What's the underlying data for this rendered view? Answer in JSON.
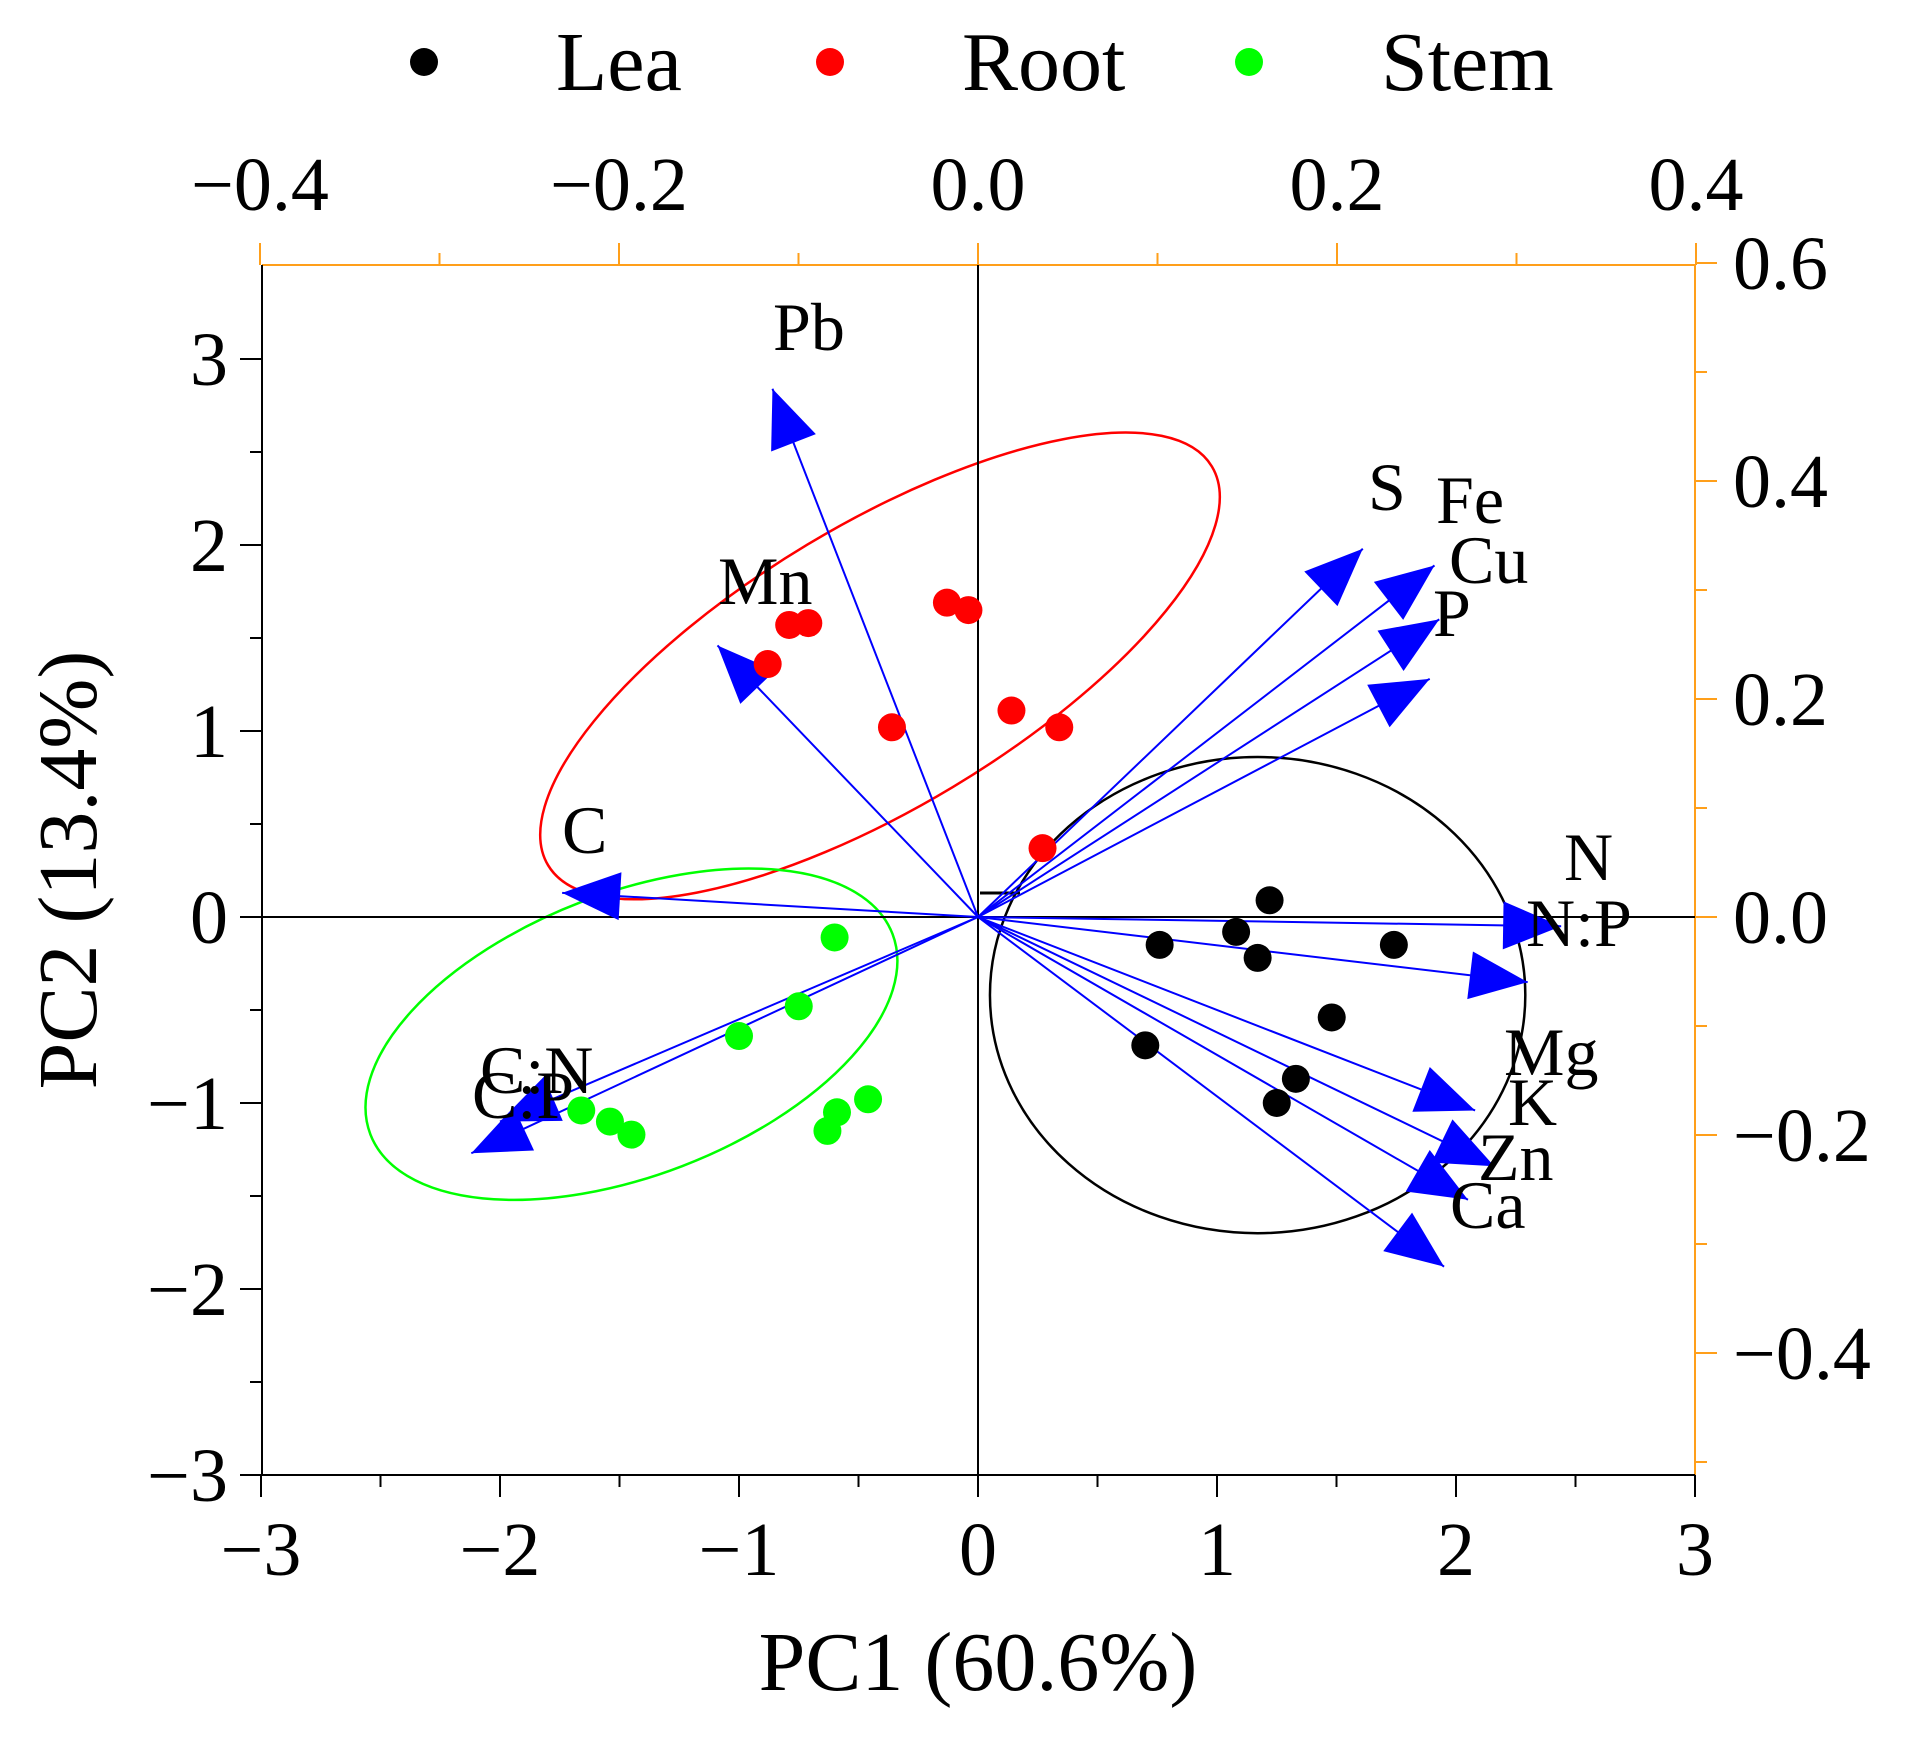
{
  "chart_data": {
    "type": "scatter",
    "subtype": "pca-biplot",
    "xlabel": "PC1 (60.6%)",
    "ylabel": "PC2 (13.4%)",
    "xlim": [
      -3,
      3
    ],
    "ylim": [
      -3,
      3.5
    ],
    "x_ticks": [
      "−3",
      "−2",
      "−1",
      "0",
      "1",
      "2",
      "3"
    ],
    "x_tick_values": [
      -3,
      -2,
      -1,
      0,
      1,
      2,
      3
    ],
    "y_ticks": [
      "−3",
      "−2",
      "−1",
      "0",
      "1",
      "2",
      "3"
    ],
    "y_tick_values": [
      -3,
      -2,
      -1,
      0,
      1,
      2,
      3
    ],
    "top_axis": {
      "range": [
        -0.4,
        0.4
      ],
      "ticks": [
        "−0.4",
        "−0.2",
        "0.0",
        "0.2",
        "0.4"
      ],
      "tick_values": [
        -0.4,
        -0.2,
        0.0,
        0.2,
        0.4
      ]
    },
    "right_axis": {
      "range": [
        -0.52,
        0.6
      ],
      "ticks": [
        "0.6",
        "0.4",
        "0.2",
        "0.0",
        "−0.2",
        "−0.4"
      ],
      "tick_values": [
        0.6,
        0.4,
        0.2,
        0.0,
        -0.2,
        -0.4
      ]
    },
    "legend": {
      "position": "top",
      "entries": [
        {
          "name": "Lea",
          "color": "#000000"
        },
        {
          "name": "Root",
          "color": "#ff0000"
        },
        {
          "name": "Stem",
          "color": "#00ff00"
        }
      ]
    },
    "series": [
      {
        "name": "Lea",
        "color": "#000000",
        "points": [
          [
            0.76,
            -0.15
          ],
          [
            1.08,
            -0.08
          ],
          [
            1.22,
            0.09
          ],
          [
            1.17,
            -0.22
          ],
          [
            1.74,
            -0.15
          ],
          [
            1.48,
            -0.54
          ],
          [
            1.33,
            -0.87
          ],
          [
            1.25,
            -1.0
          ],
          [
            0.7,
            -0.69
          ]
        ],
        "ellipse": {
          "cx": 1.17,
          "cy": -0.42,
          "rx": 1.12,
          "ry": 1.28,
          "angle": 0,
          "color": "#000000"
        }
      },
      {
        "name": "Root",
        "color": "#ff0000",
        "points": [
          [
            -0.13,
            1.69
          ],
          [
            -0.04,
            1.65
          ],
          [
            -0.79,
            1.57
          ],
          [
            -0.71,
            1.58
          ],
          [
            -0.88,
            1.36
          ],
          [
            -0.36,
            1.02
          ],
          [
            0.14,
            1.11
          ],
          [
            0.34,
            1.02
          ],
          [
            0.27,
            0.37
          ]
        ],
        "ellipse": {
          "cx": -0.41,
          "cy": 1.35,
          "rx": 1.62,
          "ry": 0.76,
          "angle": -31,
          "color": "#ff0000"
        }
      },
      {
        "name": "Stem",
        "color": "#00ff00",
        "points": [
          [
            -0.6,
            -0.11
          ],
          [
            -0.75,
            -0.48
          ],
          [
            -1.0,
            -0.64
          ],
          [
            -1.66,
            -1.04
          ],
          [
            -1.54,
            -1.1
          ],
          [
            -1.45,
            -1.17
          ],
          [
            -0.59,
            -1.05
          ],
          [
            -0.63,
            -1.15
          ],
          [
            -0.46,
            -0.98
          ]
        ],
        "ellipse": {
          "cx": -1.45,
          "cy": -0.63,
          "rx": 1.17,
          "ry": 0.76,
          "angle": -21,
          "color": "#00ff00"
        }
      }
    ],
    "loadings": [
      {
        "label": "Pb",
        "x": -0.86,
        "y": 2.84
      },
      {
        "label": "Mn",
        "x": -1.09,
        "y": 1.46
      },
      {
        "label": "C",
        "x": -1.74,
        "y": 0.13
      },
      {
        "label": "C:N",
        "x": -2.0,
        "y": -1.1
      },
      {
        "label": "C:P",
        "x": -2.12,
        "y": -1.27
      },
      {
        "label": "S",
        "x": 1.61,
        "y": 1.98
      },
      {
        "label": "Fe",
        "x": 1.91,
        "y": 1.89
      },
      {
        "label": "Cu",
        "x": 1.93,
        "y": 1.6
      },
      {
        "label": "P",
        "x": 1.89,
        "y": 1.28
      },
      {
        "label": "N",
        "x": 2.44,
        "y": -0.05
      },
      {
        "label": "N:P",
        "x": 2.3,
        "y": -0.35
      },
      {
        "label": "Mg",
        "x": 2.08,
        "y": -1.04
      },
      {
        "label": "K",
        "x": 2.16,
        "y": -1.34
      },
      {
        "label": "Zn",
        "x": 2.05,
        "y": -1.52
      },
      {
        "label": "Ca",
        "x": 1.95,
        "y": -1.88
      }
    ],
    "loading_color": "#0000ff"
  }
}
